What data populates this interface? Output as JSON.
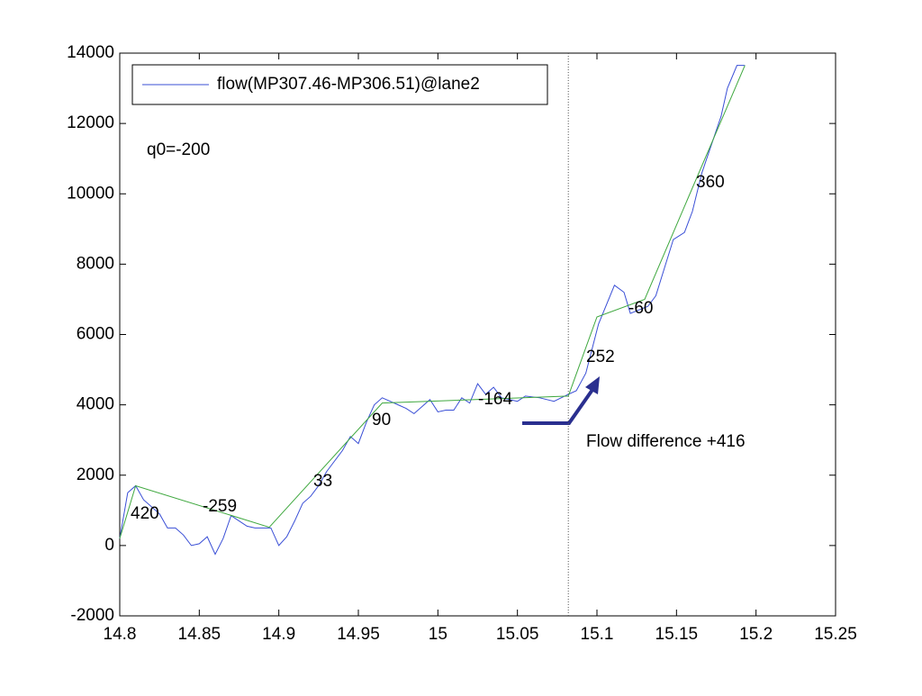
{
  "chart_data": {
    "type": "line",
    "series": [
      {
        "name": "flow(MP307.46-MP306.51)@lane2",
        "color": "#3a4fd6",
        "x": [
          14.8,
          14.805,
          14.81,
          14.815,
          14.82,
          14.825,
          14.83,
          14.835,
          14.84,
          14.845,
          14.85,
          14.855,
          14.86,
          14.865,
          14.87,
          14.875,
          14.88,
          14.885,
          14.895,
          14.9,
          14.905,
          14.91,
          14.915,
          14.92,
          14.925,
          14.93,
          14.935,
          14.94,
          14.945,
          14.95,
          14.955,
          14.96,
          14.965,
          14.97,
          14.975,
          14.98,
          14.985,
          14.99,
          14.995,
          15.0,
          15.005,
          15.01,
          15.015,
          15.02,
          15.025,
          15.03,
          15.035,
          15.04,
          15.045,
          15.05,
          15.055,
          15.064,
          15.073,
          15.082,
          15.087,
          15.093,
          15.101,
          15.111,
          15.117,
          15.121,
          15.132,
          15.137,
          15.148,
          15.155,
          15.16,
          15.166,
          15.172,
          15.178,
          15.182,
          15.188,
          15.193
        ],
        "values": [
          200,
          1500,
          1700,
          1300,
          1100,
          900,
          500,
          500,
          300,
          0,
          50,
          250,
          -250,
          200,
          850,
          700,
          550,
          500,
          500,
          0,
          250,
          700,
          1200,
          1400,
          1700,
          2100,
          2400,
          2700,
          3100,
          2900,
          3500,
          4000,
          4200,
          4100,
          4000,
          3900,
          3750,
          3950,
          4150,
          3800,
          3850,
          3850,
          4200,
          4050,
          4600,
          4300,
          4500,
          4200,
          4150,
          4100,
          4250,
          4200,
          4100,
          4300,
          4400,
          4900,
          6300,
          7400,
          7200,
          6600,
          6800,
          7100,
          8700,
          8900,
          9500,
          10600,
          11400,
          12200,
          13000,
          13650,
          13650
        ]
      },
      {
        "color": "#3fa83f",
        "x": [
          14.8,
          14.81,
          14.894,
          14.965,
          15.082,
          15.1,
          15.13,
          15.193
        ],
        "values": [
          200,
          1700,
          520,
          4050,
          4250,
          6500,
          7000,
          13650
        ]
      }
    ],
    "annotations": [
      "420",
      "-259",
      "33",
      "90",
      "-164",
      "252",
      "-60",
      "360",
      "q0=-200",
      "Flow difference +416"
    ],
    "vline_x": 15.082,
    "xlim": [
      14.8,
      15.25
    ],
    "xticks": [
      14.8,
      14.85,
      14.9,
      14.95,
      15,
      15.05,
      15.1,
      15.15,
      15.2,
      15.25
    ],
    "ylim": [
      -2000,
      14000
    ],
    "yticks": [
      -2000,
      0,
      2000,
      4000,
      6000,
      8000,
      10000,
      12000,
      14000
    ],
    "legend": "upper left"
  }
}
